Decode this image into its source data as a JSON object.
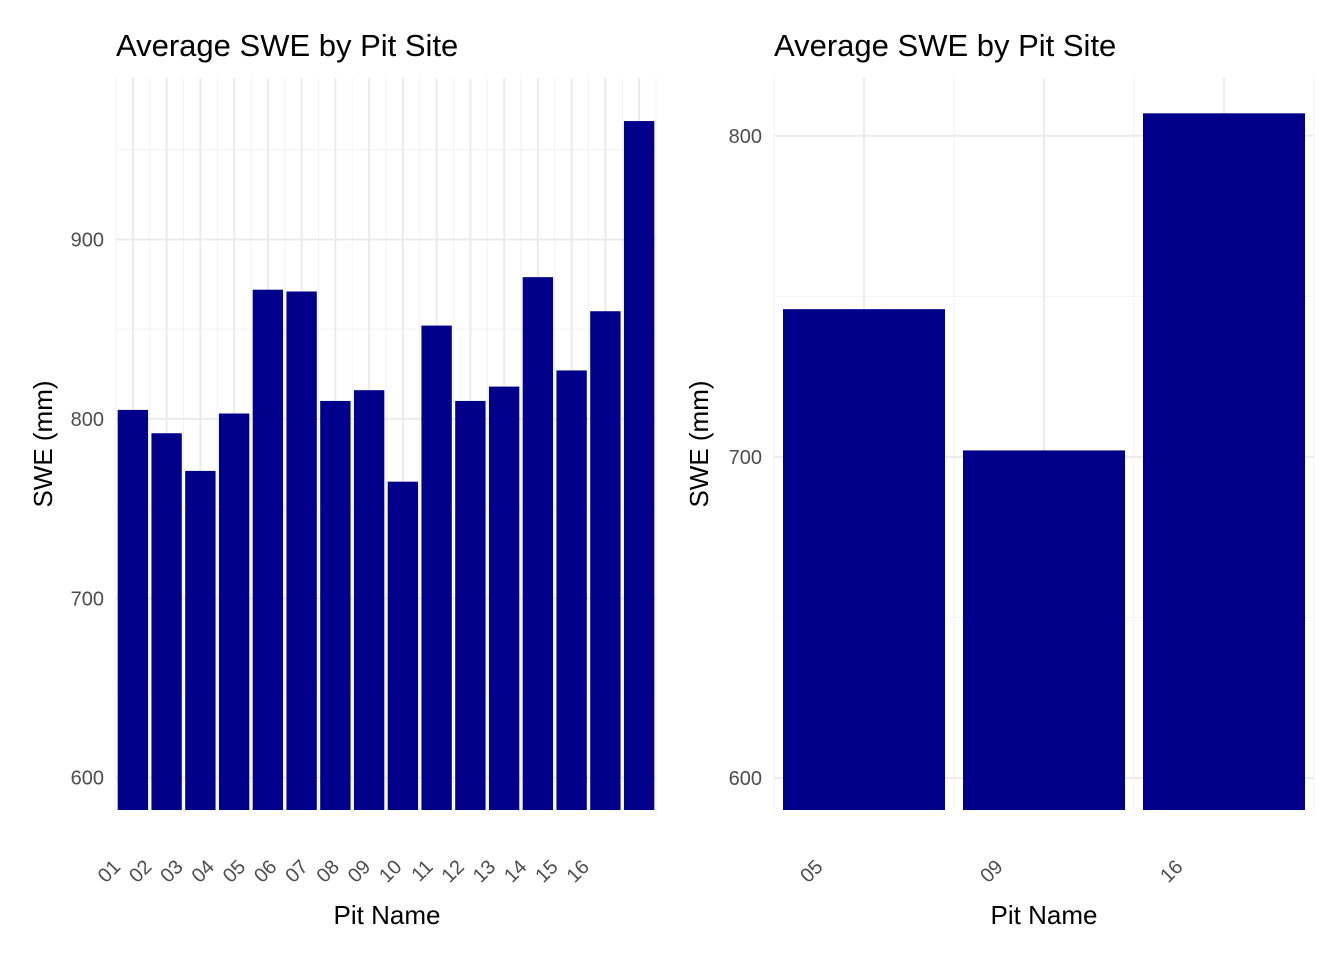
{
  "colors": {
    "bar": "#00008B",
    "grid_major": "#ebebeb",
    "grid_minor": "#f2f2f2",
    "tick_text": "#4d4d4d"
  },
  "chart_data": [
    {
      "type": "bar",
      "title": "Average SWE by Pit Site",
      "xlabel": "Pit Name",
      "ylabel": "SWE (mm)",
      "tick_labels": [
        "01",
        "02",
        "03",
        "04",
        "05",
        "06",
        "07",
        "08",
        "09",
        "10",
        "11",
        "12",
        "13",
        "14",
        "15",
        "16"
      ],
      "values": [
        805,
        792,
        771,
        803,
        872,
        871,
        810,
        816,
        765,
        852,
        810,
        818,
        879,
        827,
        860,
        966
      ],
      "yticks": [
        600,
        700,
        800,
        900
      ],
      "ylim": [
        582,
        990
      ],
      "grid": true
    },
    {
      "type": "bar",
      "title": "Average SWE by Pit Site",
      "xlabel": "Pit Name",
      "ylabel": "SWE (mm)",
      "tick_labels": [
        "05",
        "09",
        "16"
      ],
      "values": [
        746,
        702,
        807
      ],
      "yticks": [
        600,
        700,
        800
      ],
      "ylim": [
        590,
        818
      ],
      "grid": true
    }
  ]
}
